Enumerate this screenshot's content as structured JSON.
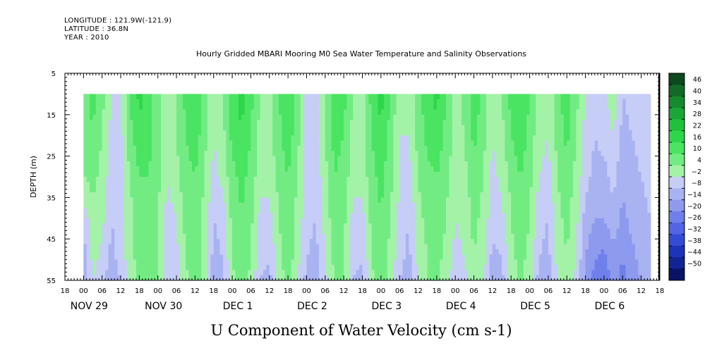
{
  "meta": {
    "longitude": "LONGITUDE : 121.9W(-121.9)",
    "latitude": "LATITUDE : 36.8N",
    "year": "YEAR : 2010"
  },
  "title": "Hourly Gridded MBARI Mooring M0 Sea Water Temperature and Salinity Observations",
  "variable_title": "U Component of Water Velocity (cm s-1)",
  "chart_data": {
    "type": "heatmap",
    "title": "Hourly Gridded MBARI Mooring M0 Sea Water Temperature and Salinity Observations",
    "subtitle": "U Component of Water Velocity (cm s-1)",
    "ylabel": "DEPTH (m)",
    "xlabel": "",
    "ylim": [
      5,
      55
    ],
    "y_inverted": true,
    "y_ticks": [
      5,
      15,
      25,
      35,
      45,
      55
    ],
    "data_depth_range": [
      10,
      55
    ],
    "xlim": [
      "2010-11-28 18:00",
      "2010-12-06 18:00"
    ],
    "x_hour_ticks": [
      "18",
      "00",
      "06",
      "12",
      "18",
      "00",
      "06",
      "12",
      "18",
      "00",
      "06",
      "12",
      "18",
      "00",
      "06",
      "12",
      "18",
      "00",
      "06",
      "12",
      "18",
      "00",
      "06",
      "12",
      "18",
      "00",
      "06",
      "12",
      "18",
      "00",
      "06",
      "12",
      "18"
    ],
    "x_date_labels": [
      {
        "label": "NOV 29",
        "hour": 0
      },
      {
        "label": "NOV 30",
        "hour": 24
      },
      {
        "label": "DEC  1",
        "hour": 48
      },
      {
        "label": "DEC  2",
        "hour": 72
      },
      {
        "label": "DEC  3",
        "hour": 96
      },
      {
        "label": "DEC  4",
        "hour": 120
      },
      {
        "label": "DEC  5",
        "hour": 144
      },
      {
        "label": "DEC  6",
        "hour": 168
      }
    ],
    "colorbar": {
      "levels": [
        46,
        40,
        34,
        28,
        22,
        16,
        10,
        4,
        -2,
        -8,
        -14,
        -20,
        -26,
        -32,
        -38,
        -44,
        -50
      ],
      "colors": [
        "#0c4a1e",
        "#126a26",
        "#168a2e",
        "#1aa636",
        "#21c03c",
        "#2dd64a",
        "#4be462",
        "#72ec82",
        "#a4f2a8",
        "#c6cdf6",
        "#a9b3f2",
        "#8d9aee",
        "#6f80ea",
        "#5166e2",
        "#334cd6",
        "#1c34b8",
        "#102494",
        "#071466"
      ]
    },
    "u_velocity_pattern": {
      "hours": [
        0,
        3,
        6,
        9,
        12,
        15,
        18,
        21,
        24,
        27,
        30,
        33,
        36,
        39,
        42,
        45,
        48,
        51,
        54,
        57,
        60,
        63,
        66,
        69,
        72,
        75,
        78,
        81,
        84,
        87,
        90,
        93,
        96,
        99,
        102,
        105,
        108,
        111,
        114,
        117,
        120,
        123,
        126,
        129,
        132,
        135,
        138,
        141,
        144,
        147,
        150,
        153,
        156,
        159,
        162,
        165,
        168,
        171,
        174,
        177,
        180,
        183
      ],
      "depths_m": [
        10,
        20,
        30,
        40,
        50,
        55
      ],
      "values_by_depth": [
        [
          8,
          12,
          6,
          -2,
          -4,
          10,
          18,
          14,
          6,
          2,
          4,
          12,
          16,
          6,
          -2,
          4,
          14,
          18,
          12,
          4,
          2,
          10,
          16,
          8,
          -4,
          -6,
          6,
          14,
          12,
          4,
          2,
          12,
          18,
          10,
          0,
          -2,
          8,
          14,
          18,
          10,
          2,
          6,
          14,
          8,
          0,
          4,
          12,
          16,
          10,
          2,
          -2,
          8,
          14,
          6,
          -2,
          -6,
          -4,
          2,
          -8,
          -6,
          -4,
          -2
        ],
        [
          6,
          10,
          4,
          -4,
          -4,
          8,
          14,
          12,
          6,
          0,
          4,
          10,
          14,
          6,
          -2,
          2,
          12,
          16,
          10,
          2,
          2,
          8,
          14,
          6,
          -4,
          -6,
          4,
          12,
          10,
          2,
          2,
          10,
          16,
          8,
          -2,
          -2,
          6,
          12,
          14,
          8,
          2,
          4,
          12,
          6,
          -2,
          2,
          10,
          14,
          8,
          0,
          -2,
          6,
          12,
          4,
          -4,
          -8,
          -6,
          -2,
          -10,
          -8,
          -6,
          -4
        ],
        [
          4,
          6,
          2,
          -6,
          -4,
          4,
          10,
          10,
          6,
          -2,
          2,
          8,
          10,
          4,
          -4,
          0,
          8,
          12,
          8,
          0,
          0,
          6,
          10,
          4,
          -4,
          -6,
          2,
          10,
          8,
          0,
          0,
          8,
          12,
          6,
          -2,
          -4,
          4,
          8,
          10,
          6,
          0,
          2,
          8,
          4,
          -4,
          0,
          6,
          10,
          6,
          -2,
          -4,
          4,
          8,
          2,
          -6,
          -10,
          -10,
          -6,
          -12,
          -10,
          -8,
          -6
        ],
        [
          -6,
          2,
          0,
          -8,
          -6,
          2,
          8,
          8,
          4,
          -4,
          -2,
          6,
          8,
          2,
          -8,
          -6,
          6,
          10,
          6,
          -4,
          -4,
          4,
          8,
          2,
          -6,
          -8,
          0,
          8,
          6,
          -4,
          -4,
          6,
          10,
          4,
          -4,
          -8,
          2,
          6,
          8,
          4,
          -2,
          0,
          6,
          2,
          -6,
          -4,
          4,
          8,
          4,
          -6,
          -8,
          2,
          6,
          0,
          -10,
          -14,
          -14,
          -10,
          -16,
          -12,
          -10,
          -8
        ],
        [
          -12,
          0,
          -4,
          -10,
          -6,
          2,
          6,
          8,
          4,
          -6,
          -4,
          4,
          8,
          0,
          -10,
          -8,
          4,
          8,
          4,
          -6,
          -8,
          2,
          8,
          0,
          -8,
          -10,
          -2,
          6,
          4,
          -6,
          -8,
          4,
          8,
          2,
          -6,
          -10,
          0,
          4,
          6,
          2,
          -4,
          -2,
          4,
          0,
          -10,
          -8,
          2,
          6,
          2,
          -8,
          -10,
          0,
          4,
          -2,
          -14,
          -20,
          -22,
          -16,
          -20,
          -16,
          -12,
          -10
        ],
        [
          -14,
          -2,
          -6,
          -12,
          -8,
          0,
          6,
          8,
          4,
          -8,
          -6,
          2,
          8,
          0,
          -12,
          -10,
          2,
          8,
          2,
          -8,
          -10,
          0,
          6,
          -2,
          -10,
          -12,
          -4,
          4,
          4,
          -8,
          -10,
          2,
          8,
          0,
          -8,
          -12,
          -2,
          4,
          6,
          0,
          -6,
          -4,
          2,
          -2,
          -12,
          -10,
          0,
          6,
          0,
          -10,
          -12,
          -2,
          4,
          -4,
          -16,
          -22,
          -24,
          -18,
          -22,
          -18,
          -14,
          -12
        ]
      ]
    }
  }
}
